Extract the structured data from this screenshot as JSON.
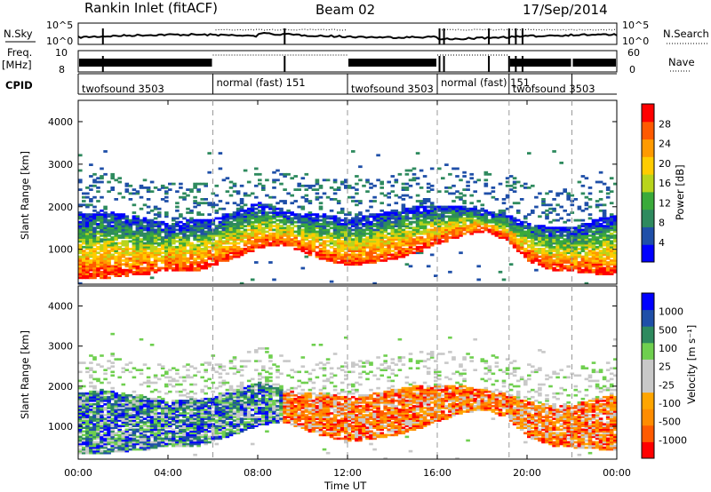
{
  "header": {
    "station": "Rankin Inlet (fitACF)",
    "beam": "Beam 02",
    "date": "17/Sep/2014"
  },
  "top_panels": {
    "nsky_label": "N.Sky",
    "nsky_ticks": [
      "10^5",
      "10^0"
    ],
    "nsearch_label": "N.Search",
    "nsearch_ticks": [
      "10^5",
      "10^0"
    ],
    "freq_label_1": "Freq.",
    "freq_label_2": "[MHz]",
    "freq_ticks": [
      "10",
      "8"
    ],
    "nave_label": "Nave",
    "nave_ticks": [
      "60",
      "0"
    ],
    "cpid_label": "CPID",
    "modes": [
      {
        "name": "twofsound 3503",
        "start_h": 0.0,
        "end_h": 6.0
      },
      {
        "name": "normal (fast) 151",
        "start_h": 6.0,
        "end_h": 12.0
      },
      {
        "name": "twofsound 3503",
        "start_h": 12.0,
        "end_h": 16.0
      },
      {
        "name": "normal (fast) 151",
        "start_h": 16.0,
        "end_h": 19.2
      },
      {
        "name": "twofsound 3503",
        "start_h": 19.2,
        "end_h": 22.0
      },
      {
        "name": "",
        "start_h": 22.0,
        "end_h": 24.0
      }
    ]
  },
  "x_axis": {
    "label": "Time UT",
    "ticks": [
      "00:00",
      "04:00",
      "08:00",
      "12:00",
      "16:00",
      "20:00",
      "00:00"
    ],
    "tick_hours": [
      0,
      4,
      8,
      12,
      16,
      20,
      24
    ]
  },
  "chart_data": [
    {
      "type": "heatmap",
      "title": "Power",
      "ylabel": "Slant Range [km]",
      "yticks": [
        "1000",
        "2000",
        "3000",
        "4000"
      ],
      "ylim": [
        180,
        4500
      ],
      "xlim_hours": [
        0,
        24
      ],
      "colorbar": {
        "label": "Power [dB]",
        "ticks": [
          "28",
          "24",
          "20",
          "16",
          "12",
          "8",
          "4"
        ],
        "colors": [
          "#0000ff",
          "#1f4fa8",
          "#2e8a5e",
          "#3aaa3a",
          "#b8d41c",
          "#ffcc00",
          "#ff9a00",
          "#ff5a00",
          "#ff0000"
        ]
      },
      "echo_bands": [
        {
          "hours": [
            0,
            1,
            2,
            3,
            4,
            5,
            6,
            7,
            8,
            9,
            10,
            11,
            12,
            13,
            14,
            15,
            16,
            17,
            18,
            19,
            20,
            21,
            22,
            23,
            24
          ],
          "low_km": [
            300,
            300,
            350,
            400,
            500,
            450,
            600,
            800,
            1000,
            1100,
            900,
            700,
            600,
            650,
            750,
            900,
            1100,
            1300,
            1400,
            1200,
            700,
            500,
            450,
            400,
            400
          ],
          "high_km": [
            1800,
            1900,
            1800,
            1700,
            1600,
            1700,
            1700,
            1900,
            2100,
            1900,
            1800,
            1800,
            1700,
            1800,
            1900,
            2000,
            2000,
            2000,
            1900,
            1800,
            1600,
            1500,
            1500,
            1700,
            1800
          ]
        }
      ]
    },
    {
      "type": "heatmap",
      "title": "Velocity",
      "ylabel": "Slant Range [km]",
      "yticks": [
        "1000",
        "2000",
        "3000",
        "4000"
      ],
      "ylim": [
        180,
        4500
      ],
      "xlim_hours": [
        0,
        24
      ],
      "colorbar": {
        "label": "Velocity [m s⁻¹]",
        "ticks": [
          "1000",
          "500",
          "100",
          "25",
          "-25",
          "-100",
          "-500",
          "-1000"
        ],
        "colors": [
          "#ff0000",
          "#ff5a00",
          "#ff8c00",
          "#ffa500",
          "#c8c8c8",
          "#c8c8c8",
          "#6fcf4f",
          "#2e8a5e",
          "#1f4fa8",
          "#0000ff"
        ]
      }
    }
  ]
}
